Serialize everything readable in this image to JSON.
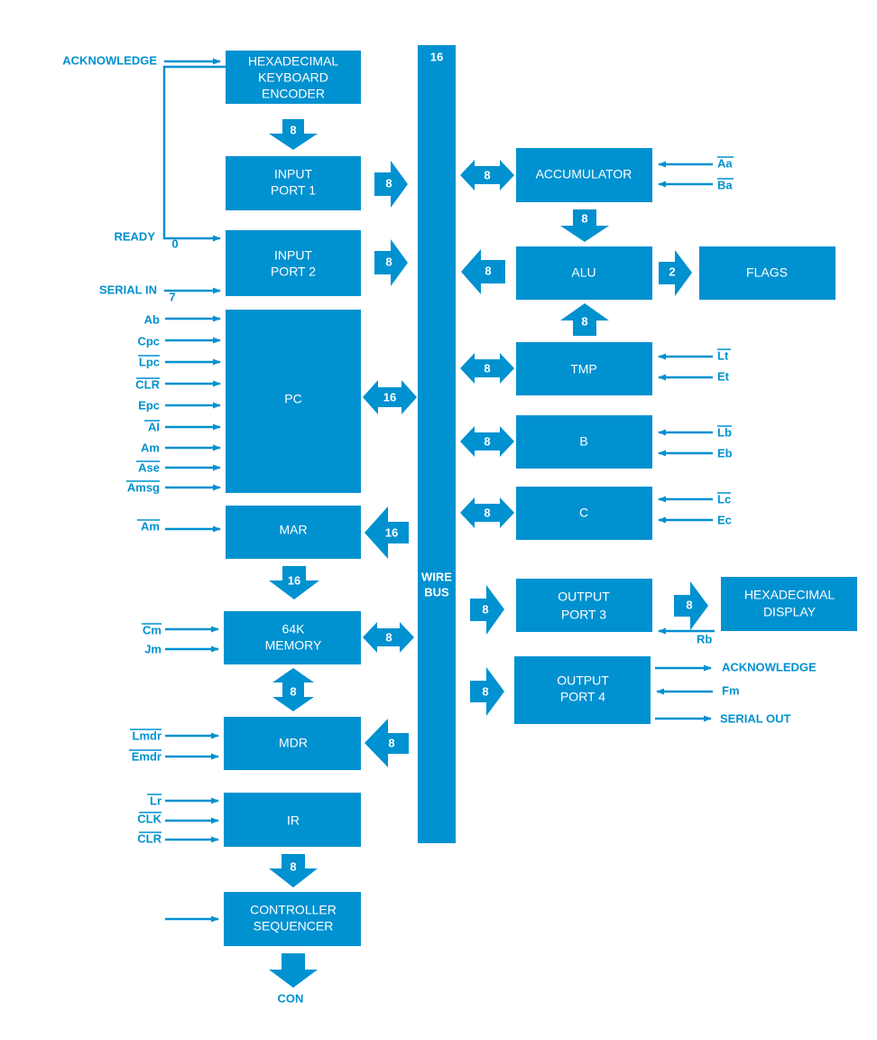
{
  "blocks": {
    "hex_keyboard": [
      "HEXADECIMAL",
      "KEYBOARD",
      "ENCODER"
    ],
    "input_port_1": [
      "INPUT",
      "PORT 1"
    ],
    "input_port_2": [
      "INPUT",
      "PORT 2"
    ],
    "pc": "PC",
    "mar": "MAR",
    "memory": [
      "64K",
      "MEMORY"
    ],
    "mdr": "MDR",
    "ir": "IR",
    "controller": [
      "CONTROLLER",
      "SEQUENCER"
    ],
    "bus": [
      "WIRE",
      "BUS"
    ],
    "bus_width": "16",
    "accumulator": "ACCUMULATOR",
    "alu": "ALU",
    "flags": "FLAGS",
    "tmp": "TMP",
    "b": "B",
    "c": "C",
    "output_port_3": [
      "OUTPUT",
      "PORT 3"
    ],
    "hex_display": [
      "HEXADECIMAL",
      "DISPLAY"
    ],
    "output_port_4": [
      "OUTPUT",
      "PORT 4"
    ]
  },
  "widths": {
    "kb_to_in1": "8",
    "in1_bus": "8",
    "in2_bus": "8",
    "pc_bus": "16",
    "bus_mar": "16",
    "mar_mem": "16",
    "mem_bus": "8",
    "mem_mdr": "8",
    "bus_mdr": "8",
    "ir_ctrl": "8",
    "acc_bus": "8",
    "acc_alu": "8",
    "alu_bus": "8",
    "alu_flags": "2",
    "tmp_alu": "8",
    "tmp_bus": "8",
    "b_bus": "8",
    "c_bus": "8",
    "bus_out3": "8",
    "out3_disp": "8",
    "bus_out4": "8"
  },
  "signals": {
    "acknowledge_in": "ACKNOWLEDGE",
    "ready": "READY",
    "ready_bit": "0",
    "serial_in": "SERIAL IN",
    "serial_bit": "7",
    "pc_controls": [
      "Ab",
      "Cpc",
      "Lpc",
      "CLR",
      "Epc",
      "AI",
      "Am",
      "Ase",
      "Amsg"
    ],
    "mar_control": "Am",
    "memory_controls": [
      "Cm",
      "Jm"
    ],
    "mdr_controls": [
      "Lmdr",
      "Emdr"
    ],
    "ir_controls": [
      "Lr",
      "CLK",
      "CLR"
    ],
    "con": "CON",
    "acc_controls": [
      "Aa",
      "Ba"
    ],
    "tmp_controls": [
      "Lt",
      "Et"
    ],
    "b_controls": [
      "Lb",
      "Eb"
    ],
    "c_controls": [
      "Lc",
      "Ec"
    ],
    "rb": "Rb",
    "acknowledge_out": "ACKNOWLEDGE",
    "fm": "Fm",
    "serial_out": "SERIAL OUT"
  },
  "colors": {
    "primary": "#0091d0",
    "text_on_block": "#ffffff"
  }
}
